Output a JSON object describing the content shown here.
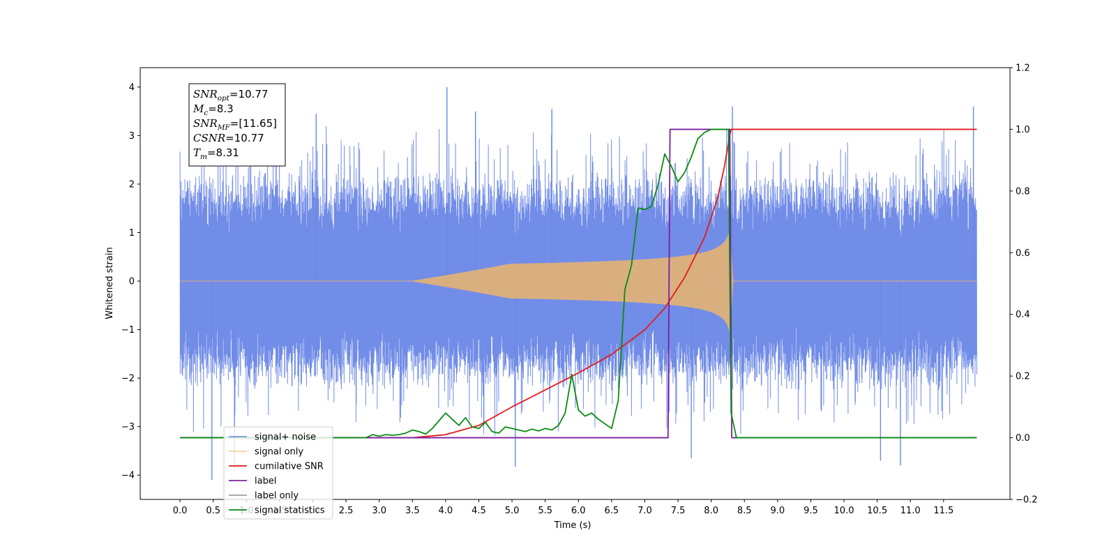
{
  "chart_data": {
    "type": "line",
    "title": "",
    "xlabel": "Time (s)",
    "ylabel": "Whitened strain",
    "xlim": [
      -0.6,
      12.5
    ],
    "ylim": [
      -4.5,
      4.4
    ],
    "y2lim": [
      -0.2,
      1.2
    ],
    "x_ticks": [
      "0.0",
      "0.5",
      "1.0",
      "1.5",
      "2.0",
      "2.5",
      "3.0",
      "3.5",
      "4.0",
      "4.5",
      "5.0",
      "5.5",
      "6.0",
      "6.5",
      "7.0",
      "7.5",
      "8.0",
      "8.5",
      "9.0",
      "9.5",
      "10.0",
      "10.5",
      "11.0",
      "11.5"
    ],
    "y_ticks": [
      "4",
      "3",
      "2",
      "1",
      "0",
      "−1",
      "−2",
      "−3",
      "−4"
    ],
    "y2_ticks": [
      "1.2",
      "1.0",
      "0.8",
      "0.6",
      "0.4",
      "0.2",
      "0.0",
      "−0.2"
    ],
    "grid": false,
    "legend_position": "lower-left",
    "annotation": {
      "lines": [
        {
          "base": "SNR",
          "sub": "opt",
          "rest": "=10.77"
        },
        {
          "base": "M",
          "sub": "c",
          "rest": "=8.3"
        },
        {
          "base": "SNR",
          "sub": "MF",
          "rest": "=[11.65]"
        },
        {
          "base": "CSNR",
          "sub": "",
          "rest": "=10.77"
        },
        {
          "base": "T",
          "sub": "m",
          "rest": "=8.31"
        }
      ]
    },
    "series": [
      {
        "name": "signal+ noise",
        "axis": "left",
        "color": "#6a87e6",
        "kind": "noise",
        "x_range": [
          0.0,
          12.0
        ],
        "envelope": {
          "typical": 2.0,
          "max": 4.0,
          "min": -4.1
        },
        "peaks": [
          {
            "x": 4.02,
            "y": 4.0
          },
          {
            "x": 11.95,
            "y": 3.6
          },
          {
            "x": 8.32,
            "y": 3.6
          },
          {
            "x": 5.6,
            "y": 3.55
          },
          {
            "x": 2.05,
            "y": 3.45
          },
          {
            "x": 4.45,
            "y": 3.5
          },
          {
            "x": 0.48,
            "y": -4.1
          },
          {
            "x": 5.05,
            "y": -3.83
          },
          {
            "x": 10.55,
            "y": -3.7
          },
          {
            "x": 10.85,
            "y": -3.8
          },
          {
            "x": 7.7,
            "y": -3.65
          },
          {
            "x": 0.82,
            "y": -3.9
          }
        ]
      },
      {
        "name": "signal only",
        "axis": "left",
        "color": "#f2b866",
        "kind": "chirp",
        "x_range": [
          0.0,
          12.0
        ],
        "chirp_start": 3.5,
        "merger_time": 8.28,
        "peak_amplitude": 1.05
      },
      {
        "name": "cumilative SNR",
        "axis": "right",
        "color": "#e31a1c",
        "x": [
          0.0,
          3.5,
          4.0,
          4.5,
          5.0,
          5.5,
          6.0,
          6.5,
          7.0,
          7.3,
          7.6,
          7.9,
          8.1,
          8.2,
          8.27,
          8.3,
          12.0
        ],
        "y": [
          0.0,
          0.0,
          0.01,
          0.04,
          0.1,
          0.155,
          0.21,
          0.27,
          0.35,
          0.42,
          0.52,
          0.65,
          0.78,
          0.88,
          0.97,
          1.0,
          1.0
        ]
      },
      {
        "name": "label",
        "axis": "right",
        "color": "#7b1fa2",
        "x": [
          0.0,
          7.35,
          7.38,
          8.28,
          8.31,
          12.0
        ],
        "y": [
          0.0,
          0.0,
          1.0,
          1.0,
          0.0,
          0.0
        ]
      },
      {
        "name": "label only",
        "axis": "right",
        "color": "#9e9e9e",
        "x": [],
        "y": []
      },
      {
        "name": "signal statistics",
        "axis": "right",
        "color": "#0a8a12",
        "x": [
          0.0,
          2.8,
          2.9,
          3.0,
          3.1,
          3.2,
          3.3,
          3.4,
          3.5,
          3.6,
          3.7,
          3.8,
          3.9,
          4.0,
          4.1,
          4.2,
          4.3,
          4.4,
          4.5,
          4.6,
          4.7,
          4.8,
          4.9,
          5.0,
          5.1,
          5.2,
          5.3,
          5.4,
          5.5,
          5.6,
          5.7,
          5.8,
          5.9,
          6.0,
          6.1,
          6.2,
          6.3,
          6.4,
          6.5,
          6.6,
          6.7,
          6.8,
          6.9,
          7.0,
          7.1,
          7.2,
          7.3,
          7.4,
          7.5,
          7.6,
          7.7,
          7.8,
          7.9,
          8.0,
          8.1,
          8.2,
          8.26,
          8.3,
          8.38,
          12.0
        ],
        "y": [
          0.0,
          0.0,
          0.01,
          0.005,
          0.01,
          0.008,
          0.01,
          0.015,
          0.025,
          0.02,
          0.012,
          0.03,
          0.055,
          0.08,
          0.06,
          0.04,
          0.065,
          0.035,
          0.03,
          0.05,
          0.02,
          0.015,
          0.035,
          0.03,
          0.025,
          0.02,
          0.028,
          0.022,
          0.03,
          0.025,
          0.04,
          0.08,
          0.205,
          0.09,
          0.07,
          0.08,
          0.06,
          0.045,
          0.03,
          0.12,
          0.48,
          0.56,
          0.745,
          0.74,
          0.75,
          0.82,
          0.92,
          0.88,
          0.83,
          0.86,
          0.91,
          0.97,
          0.99,
          1.0,
          1.0,
          1.0,
          1.0,
          0.08,
          0.0,
          0.0
        ]
      }
    ]
  }
}
